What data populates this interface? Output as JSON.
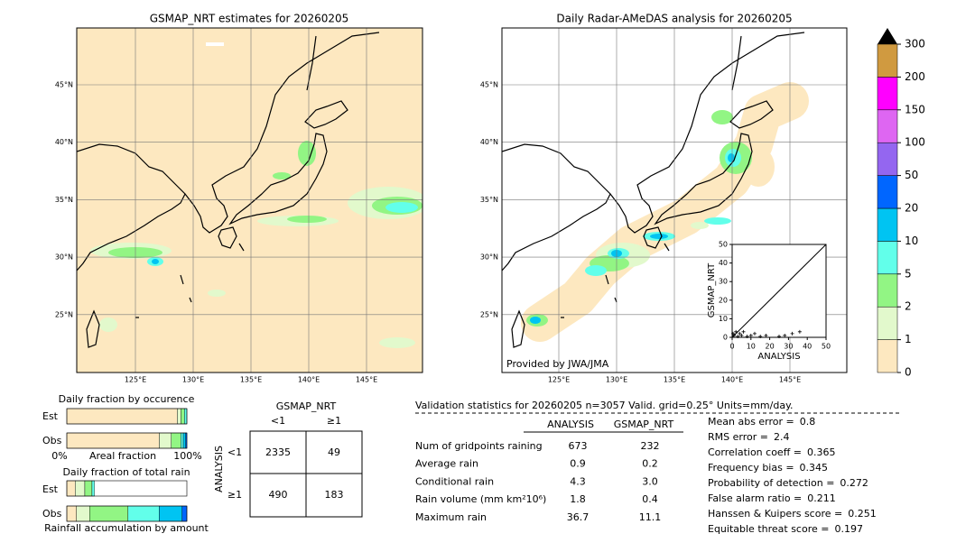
{
  "left_map": {
    "title": "GSMAP_NRT estimates for 20260205",
    "lat_labels": [
      "45°N",
      "40°N",
      "35°N",
      "30°N",
      "25°N"
    ],
    "lon_labels": [
      "125°E",
      "130°E",
      "135°E",
      "140°E",
      "145°E"
    ]
  },
  "right_map": {
    "title": "Daily Radar-AMeDAS analysis for 20260205",
    "lat_labels": [
      "45°N",
      "40°N",
      "35°N",
      "30°N",
      "25°N"
    ],
    "lon_labels": [
      "125°E",
      "130°E",
      "135°E",
      "140°E",
      "145°E"
    ],
    "credit": "Provided by JWA/JMA"
  },
  "colorbar": {
    "ticks": [
      0,
      1,
      2,
      5,
      10,
      20,
      50,
      100,
      150,
      200,
      300
    ],
    "colors": [
      "#fde8c0",
      "#e2f9cc",
      "#92f584",
      "#62ffea",
      "#00c4f2",
      "#0066ff",
      "#9466f0",
      "#de66f2",
      "#ff00ff",
      "#d09a40"
    ]
  },
  "scatter": {
    "xlabel": "ANALYSIS",
    "ylabel": "GSMAP_NRT",
    "xlim": [
      0,
      50
    ],
    "ylim": [
      0,
      50
    ],
    "xticks": [
      0,
      10,
      20,
      30,
      40,
      50
    ],
    "yticks": [
      0,
      10,
      20,
      30,
      40,
      50
    ],
    "x": [
      0.5,
      1,
      2,
      3,
      4,
      5,
      6,
      8,
      10,
      12,
      15,
      18,
      25,
      28,
      32,
      36
    ],
    "y": [
      2,
      1,
      3,
      0.5,
      2,
      1,
      3,
      0.5,
      1,
      2,
      0.5,
      1,
      0.5,
      1,
      2,
      3
    ]
  },
  "occurrence": {
    "title": "Daily fraction by occurence",
    "rows": [
      "Est",
      "Obs"
    ],
    "xlim": [
      0,
      100
    ],
    "left_label": "0%",
    "axis_label": "Areal fraction",
    "right_label": "100%",
    "est": [
      92,
      3,
      3,
      2
    ],
    "obs": [
      77,
      10,
      8,
      2,
      2,
      1
    ]
  },
  "rainfall": {
    "title": "Daily fraction of total rain",
    "rows": [
      "Est",
      "Obs"
    ],
    "xlim": [
      0,
      100
    ],
    "axis_label": "Rainfall accumulation by amount",
    "est": [
      7,
      8,
      6,
      2
    ],
    "obs": [
      8,
      11,
      32,
      26,
      19,
      4
    ]
  },
  "contingency": {
    "title": "GSMAP_NRT",
    "col_labels": [
      "<1",
      "≥1"
    ],
    "row_labels": [
      "<1",
      "≥1"
    ],
    "axis_label": "ANALYSIS",
    "cells": [
      [
        2335,
        49
      ],
      [
        490,
        183
      ]
    ]
  },
  "stats": {
    "header": "Validation statistics for 20260205  n=3057 Valid. grid=0.25° Units=mm/day.",
    "columns": [
      "ANALYSIS",
      "GSMAP_NRT"
    ],
    "rows": [
      {
        "label": "Num of gridpoints raining",
        "values": [
          "673",
          "232"
        ]
      },
      {
        "label": "Average rain",
        "values": [
          "0.9",
          "0.2"
        ]
      },
      {
        "label": "Conditional rain",
        "values": [
          "4.3",
          "3.0"
        ]
      },
      {
        "label": "Rain volume (mm km²10⁶)",
        "values": [
          "1.8",
          "0.4"
        ]
      },
      {
        "label": "Maximum rain",
        "values": [
          "36.7",
          "11.1"
        ]
      }
    ],
    "scores": [
      {
        "label": "Mean abs error =",
        "value": "0.8"
      },
      {
        "label": "RMS error =",
        "value": "2.4"
      },
      {
        "label": "Correlation coeff =",
        "value": "0.365"
      },
      {
        "label": "Frequency bias =",
        "value": "0.345"
      },
      {
        "label": "Probability of detection =",
        "value": "0.272"
      },
      {
        "label": "False alarm ratio =",
        "value": "0.211"
      },
      {
        "label": "Hanssen & Kuipers score =",
        "value": "0.251"
      },
      {
        "label": "Equitable threat score =",
        "value": "0.197"
      }
    ]
  }
}
